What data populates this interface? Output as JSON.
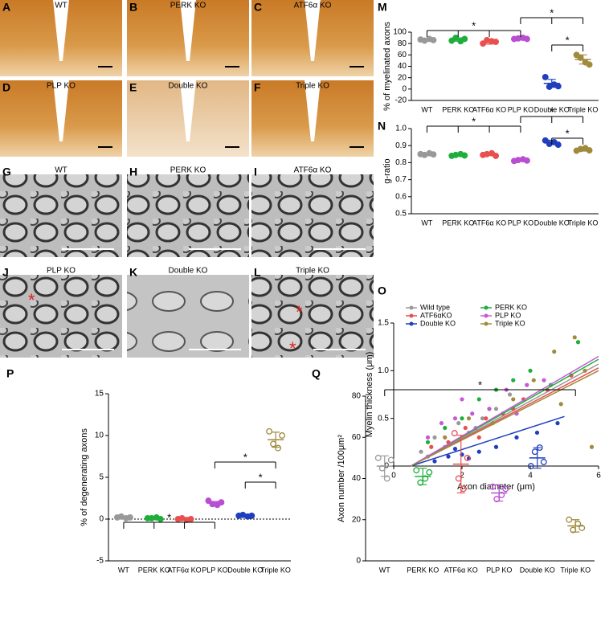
{
  "panels": [
    {
      "letter": "A",
      "label": "WT"
    },
    {
      "letter": "B",
      "label": "PERK KO"
    },
    {
      "letter": "C",
      "label": "ATF6α KO"
    },
    {
      "letter": "D",
      "label": "PLP KO"
    },
    {
      "letter": "E",
      "label": "Double KO"
    },
    {
      "letter": "F",
      "label": "Triple KO"
    },
    {
      "letter": "G",
      "label": "WT"
    },
    {
      "letter": "H",
      "label": "PERK KO"
    },
    {
      "letter": "I",
      "label": "ATF6α KO"
    },
    {
      "letter": "J",
      "label": "PLP KO",
      "marks": [
        "*"
      ]
    },
    {
      "letter": "K",
      "label": "Double KO"
    },
    {
      "letter": "L",
      "label": "Triple KO",
      "marks": [
        "*",
        "*"
      ]
    }
  ],
  "chart_data": [
    {
      "type": "dotplot",
      "panel": "M",
      "ylabel": "% of myelinated axons",
      "categories": [
        "WT",
        "PERK KO",
        "ATF6α KO",
        "PLP KO",
        "Double KO",
        "Triple KO"
      ],
      "colors": [
        "#999999",
        "#1fae3b",
        "#e8504f",
        "#b84fd1",
        "#1f3fbf",
        "#a08a3c"
      ],
      "points": [
        [
          87,
          85,
          88,
          86
        ],
        [
          85,
          90,
          84,
          88
        ],
        [
          80,
          86,
          84,
          83
        ],
        [
          88,
          89,
          90,
          88
        ],
        [
          21,
          4,
          8,
          5
        ],
        [
          60,
          55,
          47,
          43
        ]
      ],
      "means": [
        86,
        87,
        83,
        89,
        10,
        52
      ],
      "sds": [
        2,
        3,
        4,
        1,
        7,
        8
      ],
      "ylim": [
        -20,
        100
      ],
      "yticks": [
        -20,
        0,
        20,
        40,
        60,
        80,
        100
      ],
      "annotations": [
        "*",
        "*",
        "*"
      ]
    },
    {
      "type": "dotplot",
      "panel": "N",
      "ylabel": "g-ratio",
      "categories": [
        "WT",
        "PERK KO",
        "ATF6α KO",
        "PLP KO",
        "Double KO",
        "Triple KO"
      ],
      "colors": [
        "#999999",
        "#1fae3b",
        "#e8504f",
        "#b84fd1",
        "#1f3fbf",
        "#a08a3c"
      ],
      "points": [
        [
          0.85,
          0.845,
          0.855,
          0.848
        ],
        [
          0.84,
          0.845,
          0.85,
          0.842
        ],
        [
          0.845,
          0.85,
          0.855,
          0.84
        ],
        [
          0.81,
          0.815,
          0.82,
          0.812
        ],
        [
          0.93,
          0.91,
          0.92,
          0.905
        ],
        [
          0.87,
          0.88,
          0.885,
          0.872
        ]
      ],
      "means": [
        0.85,
        0.845,
        0.848,
        0.815,
        0.92,
        0.875
      ],
      "sds": [
        0.005,
        0.004,
        0.006,
        0.005,
        0.012,
        0.007
      ],
      "ylim": [
        0.5,
        1
      ],
      "yticks": [
        0.5,
        0.6,
        0.7,
        0.8,
        0.9,
        {
          "value": 1,
          "label": "1.0"
        }
      ],
      "annotations": [
        "*",
        "*",
        "*"
      ]
    },
    {
      "type": "scatter",
      "panel": "O",
      "xlabel": "Axon diameter (μm)",
      "ylabel": "Myelin thickness (μm)",
      "xlim": [
        0,
        6
      ],
      "ylim": [
        0,
        1.5
      ],
      "xticks": [
        0,
        2,
        4,
        6
      ],
      "yticks": [
        0,
        0.5,
        {
          "value": 1,
          "label": "1.0"
        },
        1.5
      ],
      "series": [
        {
          "name": "Wild type",
          "color": "#999999",
          "x": [
            0.8,
            1.2,
            1.5,
            1.9,
            2.2,
            2.6,
            3.0,
            3.4,
            1.0,
            2.4
          ],
          "y": [
            0.15,
            0.3,
            0.2,
            0.45,
            0.35,
            0.5,
            0.6,
            0.75,
            0.1,
            0.4
          ],
          "fit_x": [
            0.5,
            6
          ],
          "fit_y": [
            0,
            1.07
          ]
        },
        {
          "name": "ATF6αKO",
          "color": "#e8504f",
          "x": [
            1.1,
            1.6,
            2.1,
            2.7,
            3.2,
            3.8,
            4.5,
            5.2,
            2.5,
            3.5
          ],
          "y": [
            0.2,
            0.25,
            0.4,
            0.5,
            0.55,
            0.7,
            0.8,
            0.95,
            0.3,
            0.6
          ],
          "fit_x": [
            0.5,
            6
          ],
          "fit_y": [
            0,
            1.03
          ]
        },
        {
          "name": "Double KO",
          "color": "#1f3fbf",
          "x": [
            1.2,
            1.6,
            2.0,
            2.5,
            3.0,
            3.6,
            4.2,
            4.8,
            2.2,
            1.8
          ],
          "y": [
            0.05,
            0.1,
            0.12,
            0.15,
            0.2,
            0.3,
            0.35,
            0.45,
            0.08,
            0.18
          ],
          "fit_x": [
            0.5,
            5
          ],
          "fit_y": [
            0,
            0.52
          ]
        },
        {
          "name": "PERK KO",
          "color": "#1fae3b",
          "x": [
            1.0,
            1.5,
            2.0,
            2.5,
            3.0,
            3.5,
            4.0,
            4.6,
            5.4,
            2.8
          ],
          "y": [
            0.25,
            0.4,
            0.5,
            0.7,
            0.8,
            0.9,
            1.0,
            0.85,
            1.3,
            0.6
          ],
          "fit_x": [
            0.5,
            6
          ],
          "fit_y": [
            0,
            1.12
          ]
        },
        {
          "name": "PLP KO",
          "color": "#c45ad6",
          "x": [
            1.0,
            1.4,
            1.8,
            2.3,
            2.8,
            3.3,
            3.9,
            4.4,
            2.0,
            3.6
          ],
          "y": [
            0.3,
            0.45,
            0.5,
            0.55,
            0.6,
            0.8,
            0.85,
            0.9,
            0.7,
            0.55
          ],
          "fit_x": [
            0.5,
            6
          ],
          "fit_y": [
            0,
            1.15
          ]
        },
        {
          "name": "Triple KO",
          "color": "#a08a3c",
          "x": [
            1.5,
            2.2,
            2.9,
            3.5,
            4.1,
            4.7,
            5.3,
            5.8,
            4.9,
            5.6
          ],
          "y": [
            0.3,
            0.5,
            0.45,
            0.7,
            0.9,
            1.2,
            1.35,
            0.2,
            0.65,
            1.0
          ],
          "fit_x": [
            0.5,
            6
          ],
          "fit_y": [
            0,
            1.0
          ]
        }
      ]
    },
    {
      "type": "dotplot",
      "panel": "P",
      "ylabel": "% of degenerating axons",
      "categories": [
        "WT",
        "PERK KO",
        "ATF6α KO",
        "PLP KO",
        "Double KO",
        "Triple KO"
      ],
      "colors": [
        "#999999",
        "#1fae3b",
        "#e8504f",
        "#b84fd1",
        "#1f3fbf",
        "#a08a3c"
      ],
      "points": [
        [
          0.2,
          0.3,
          0.1,
          0.2
        ],
        [
          0.1,
          0.1,
          0.2,
          0.0
        ],
        [
          0.0,
          0.1,
          -0.1,
          0.0
        ],
        [
          2.2,
          1.8,
          1.7,
          2.0
        ],
        [
          0.4,
          0.5,
          0.3,
          0.4
        ],
        [
          10.5,
          9.0,
          8.5,
          10.0
        ]
      ],
      "means": [
        0.2,
        0.1,
        0,
        1.9,
        0.4,
        9.5
      ],
      "sds": [
        0.1,
        0.1,
        0.1,
        0.2,
        0.1,
        0.9
      ],
      "ylim": [
        -5,
        15
      ],
      "yticks": [
        -5,
        0,
        5,
        10,
        15
      ],
      "zero_line": true,
      "annotations": [
        "*",
        "*",
        "*"
      ]
    },
    {
      "type": "dotplot",
      "panel": "Q",
      "ylabel": "Axon number /100μm²",
      "categories": [
        "WT",
        "PERK KO",
        "ATF6α KO",
        "PLP KO",
        "Double KO",
        "Triple KO"
      ],
      "colors": [
        "#999999",
        "#1fae3b",
        "#e8504f",
        "#b84fd1",
        "#1f3fbf",
        "#a08a3c"
      ],
      "points": [
        [
          50,
          45,
          40,
          49
        ],
        [
          44,
          38,
          40,
          43
        ],
        [
          62,
          40,
          35,
          50
        ],
        [
          36,
          30,
          32,
          35
        ],
        [
          46,
          53,
          55,
          48
        ],
        [
          20,
          15,
          18,
          16
        ]
      ],
      "means": [
        46,
        41,
        47,
        33,
        50,
        17
      ],
      "sds": [
        5,
        4,
        14,
        4,
        5,
        3
      ],
      "ylim": [
        0,
        80
      ],
      "yticks": [
        0,
        20,
        40,
        60,
        80
      ],
      "annotations": [
        "*"
      ]
    }
  ]
}
